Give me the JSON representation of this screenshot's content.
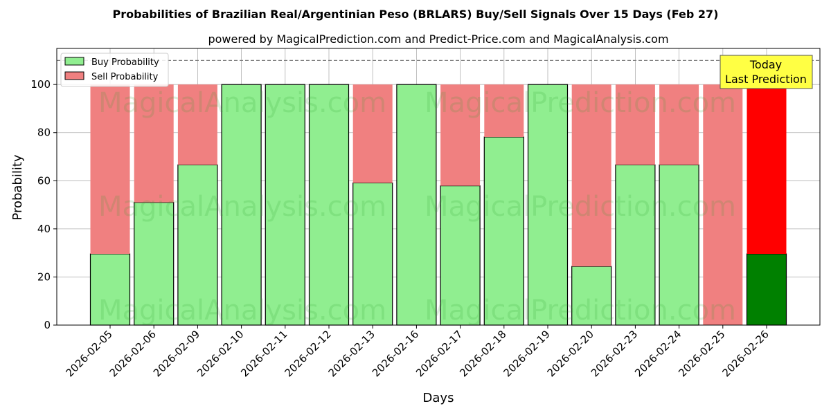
{
  "chart_data": {
    "type": "bar",
    "stacked": true,
    "title": "Probabilities of Brazilian Real/Argentinian Peso (BRLARS) Buy/Sell Signals Over 15 Days (Feb 27)",
    "subtitle": "powered by MagicalPrediction.com and Predict-Price.com and MagicalAnalysis.com",
    "xlabel": "Days",
    "ylabel": "Probability",
    "ylim": [
      0,
      115
    ],
    "yticks": [
      0,
      20,
      40,
      60,
      80,
      100
    ],
    "reference_line": 110,
    "grid": true,
    "legend_position": "top-left",
    "categories": [
      "2026-02-05",
      "2026-02-06",
      "2026-02-09",
      "2026-02-10",
      "2026-02-11",
      "2026-02-12",
      "2026-02-13",
      "2026-02-16",
      "2026-02-17",
      "2026-02-18",
      "2026-02-19",
      "2026-02-20",
      "2026-02-23",
      "2026-02-24",
      "2026-02-25",
      "2026-02-26"
    ],
    "series": [
      {
        "name": "Buy Probability",
        "color": "#90ee90",
        "highlight_color": "#008000",
        "values": [
          29.6,
          51.0,
          66.6,
          100,
          100,
          100,
          59.1,
          100,
          57.9,
          78.2,
          100,
          24.4,
          66.6,
          66.6,
          0,
          29.6
        ]
      },
      {
        "name": "Sell Probability",
        "color": "#f08080",
        "highlight_color": "#ff0000",
        "values": [
          70.4,
          49.0,
          33.4,
          0,
          0,
          0,
          40.9,
          0,
          42.1,
          21.8,
          0,
          75.6,
          33.4,
          33.4,
          100,
          70.4
        ]
      }
    ],
    "highlight_index": 15,
    "annotation": {
      "line1": "Today",
      "line2": "Last Prediction",
      "background": "#ffff44"
    },
    "watermarks": [
      "MagicalAnalysis.com",
      "MagicalPrediction.com"
    ]
  }
}
